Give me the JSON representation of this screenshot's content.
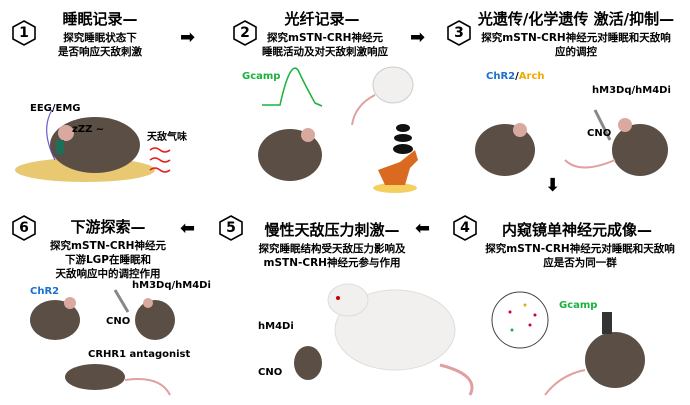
{
  "panels": [
    {
      "num": "1",
      "title": "睡眠记录—",
      "lines": [
        "探究睡眠状态下",
        "是否响应天敌刺激"
      ]
    },
    {
      "num": "2",
      "title": "光纤记录—",
      "lines": [
        "探究mSTN-CRH神经元",
        "睡眠活动及对天敌刺激响应"
      ]
    },
    {
      "num": "3",
      "title": "光遗传/化学遗传 激活/抑制—",
      "lines": [
        "探究mSTN-CRH神经元对睡眠和天敌响",
        "应的调控"
      ]
    },
    {
      "num": "4",
      "title": "内窥镜单神经元成像—",
      "lines": [
        "探究mSTN-CRH神经元对睡眠和天敌响",
        "应是否为同一群"
      ]
    },
    {
      "num": "5",
      "title": "慢性天敌压力刺激—",
      "lines": [
        "探究睡眠结构受天敌压力影响及",
        "mSTN-CRH神经元参与作用"
      ]
    },
    {
      "num": "6",
      "title": "下游探索—",
      "lines": [
        "探究mSTN-CRH神经元",
        "下游LGP在睡眠和",
        "天敌响应中的调控作用"
      ]
    }
  ],
  "labels": {
    "eeg": "EEG/EMG",
    "zzz": "zZZ ~",
    "odor": "天敌气味",
    "gcamp2": "Gcamp",
    "chr2": "ChR2",
    "slash": "/",
    "arch": "Arch",
    "dreadd3": "hM3Dq/hM4Di",
    "cno3": "CNO",
    "gcamp4": "Gcamp",
    "hm4di5": "hM4Di",
    "cno5": "CNO",
    "chr2_6": "ChR2",
    "dreadd6": "hM3Dq/hM4Di",
    "cno6": "CNO",
    "antagonist": "CRHR1 antagonist"
  },
  "colors": {
    "gcamp": "#19b33c",
    "chr2": "#1a6fd1",
    "arch": "#f0a800",
    "odor": "#e02020",
    "mouse": "#5b4f45",
    "rat": "#f2f0ee",
    "ear": "#d9a9a0"
  }
}
